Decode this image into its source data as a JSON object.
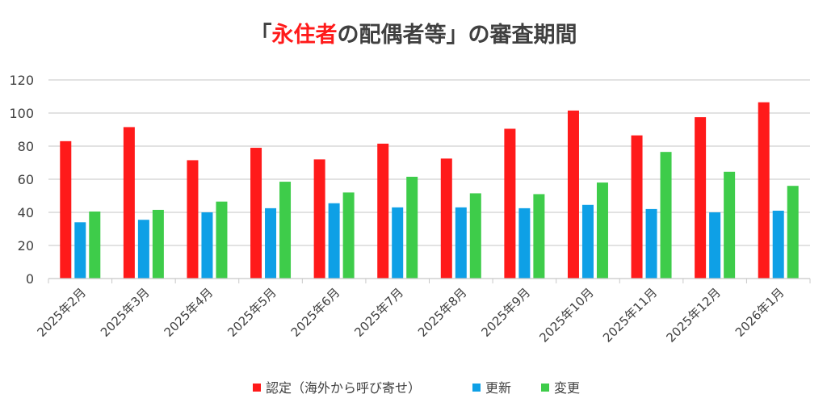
{
  "chart_data": {
    "type": "bar",
    "title_parts": [
      {
        "text": "「",
        "color": "#404040"
      },
      {
        "text": "永住者",
        "color": "#ff1a1a"
      },
      {
        "text": "の配偶者等」の審査期間",
        "color": "#404040"
      }
    ],
    "xlabel": "",
    "ylabel": "",
    "ylim": [
      0,
      120
    ],
    "yticks": [
      0,
      20,
      40,
      60,
      80,
      100,
      120
    ],
    "grid": true,
    "legend_position": "bottom",
    "categories": [
      "2025年2月",
      "2025年3月",
      "2025年4月",
      "2025年5月",
      "2025年6月",
      "2025年7月",
      "2025年8月",
      "2025年9月",
      "2025年10月",
      "2025年11月",
      "2025年12月",
      "2026年1月"
    ],
    "series": [
      {
        "name": "認定（海外から呼び寄せ）",
        "color": "#ff1a1a",
        "values": [
          83,
          91.5,
          71.5,
          79,
          72,
          81.5,
          72.5,
          90.5,
          101.5,
          86.5,
          97.5,
          106.5
        ]
      },
      {
        "name": "更新",
        "color": "#0ea0e6",
        "values": [
          34,
          35.5,
          40,
          42.5,
          45.5,
          43,
          43,
          42.5,
          44.5,
          42,
          40,
          41
        ]
      },
      {
        "name": "変更",
        "color": "#3ecc4a",
        "values": [
          40.5,
          41.5,
          46.5,
          58.5,
          52,
          61.5,
          51.5,
          51,
          58,
          76.5,
          64.5,
          56
        ]
      }
    ]
  }
}
